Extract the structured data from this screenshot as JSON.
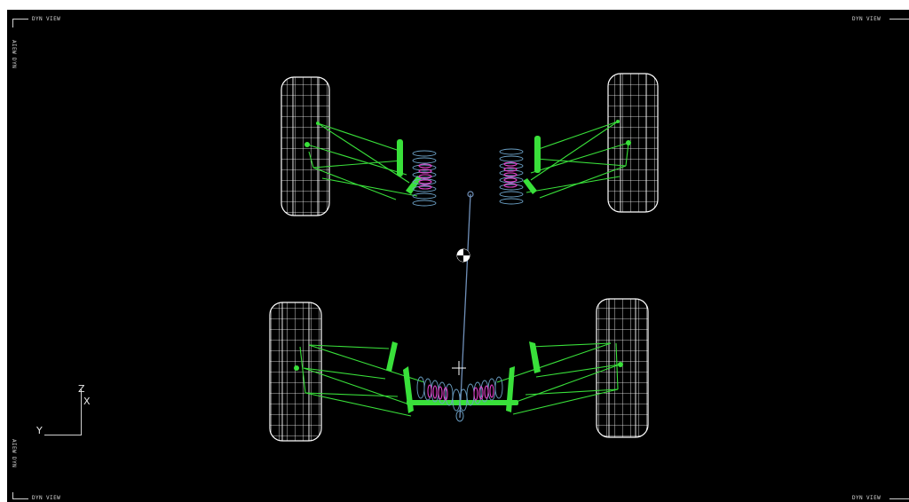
{
  "viewport": {
    "corner_labels": {
      "top_left": "DYN VIEW",
      "top_right": "DYN VIEW",
      "bottom_left": "DYN VIEW",
      "bottom_right": "DYN VIEW",
      "side_top_left": "AIEW DYN",
      "side_bottom_left": "AIEW DYN"
    },
    "triad": {
      "z": "Z",
      "x": "X",
      "y": "Y"
    }
  },
  "colors": {
    "background": "#000000",
    "wheel": "#ffffff",
    "link": "#39e03a",
    "link_dark": "#1fae23",
    "spring": "#6a9fc4",
    "spring_inner": "#e040c8",
    "axis": "#6f8fb8",
    "label": "#d8d8d8"
  },
  "icons": {
    "center_of_gravity": "center-of-gravity-icon",
    "origin": "crosshair-icon",
    "triad": "coordinate-triad-icon"
  }
}
